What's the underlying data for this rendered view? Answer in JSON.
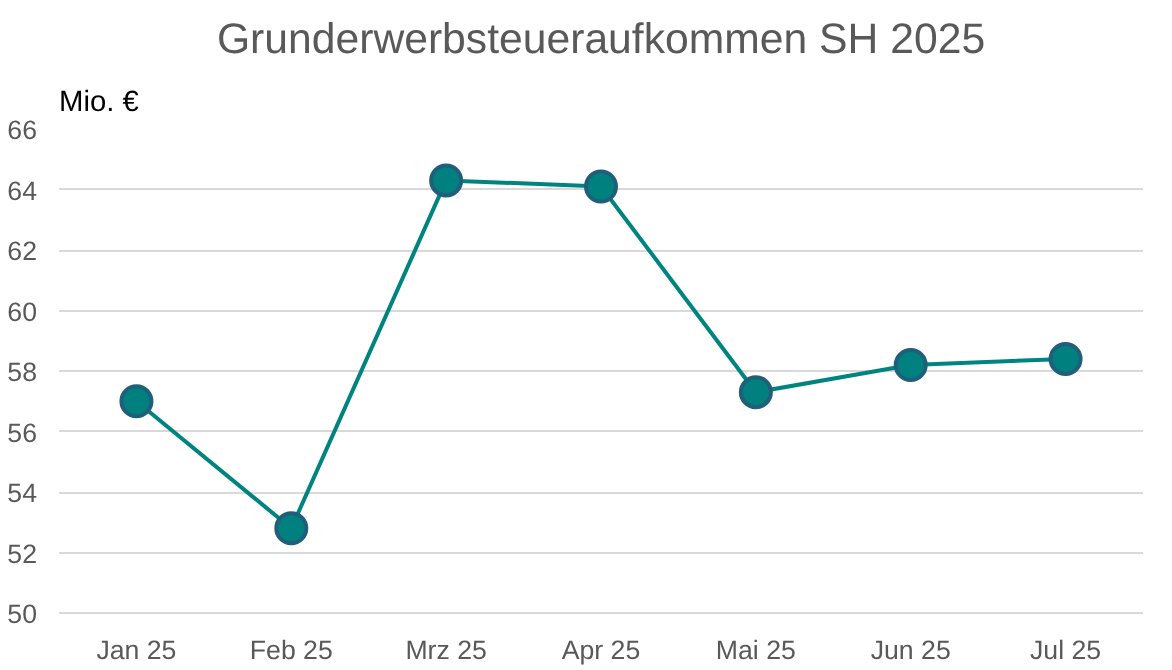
{
  "chart_data": {
    "type": "line",
    "title": "Grunderwerbsteueraufkommen SH 2025",
    "ylabel": "Mio. €",
    "categories": [
      "Jan 25",
      "Feb 25",
      "Mrz 25",
      "Apr 25",
      "Mai 25",
      "Jun 25",
      "Jul 25"
    ],
    "series": [
      {
        "color": "#00847f",
        "values": [
          57.0,
          52.8,
          64.3,
          64.1,
          57.3,
          58.2,
          58.4
        ]
      }
    ],
    "ylim": [
      50,
      66
    ],
    "yticks": [
      50,
      52,
      54,
      56,
      58,
      60,
      62,
      64,
      66
    ],
    "grid": "y",
    "marker": "circle",
    "line_style": "solid"
  }
}
